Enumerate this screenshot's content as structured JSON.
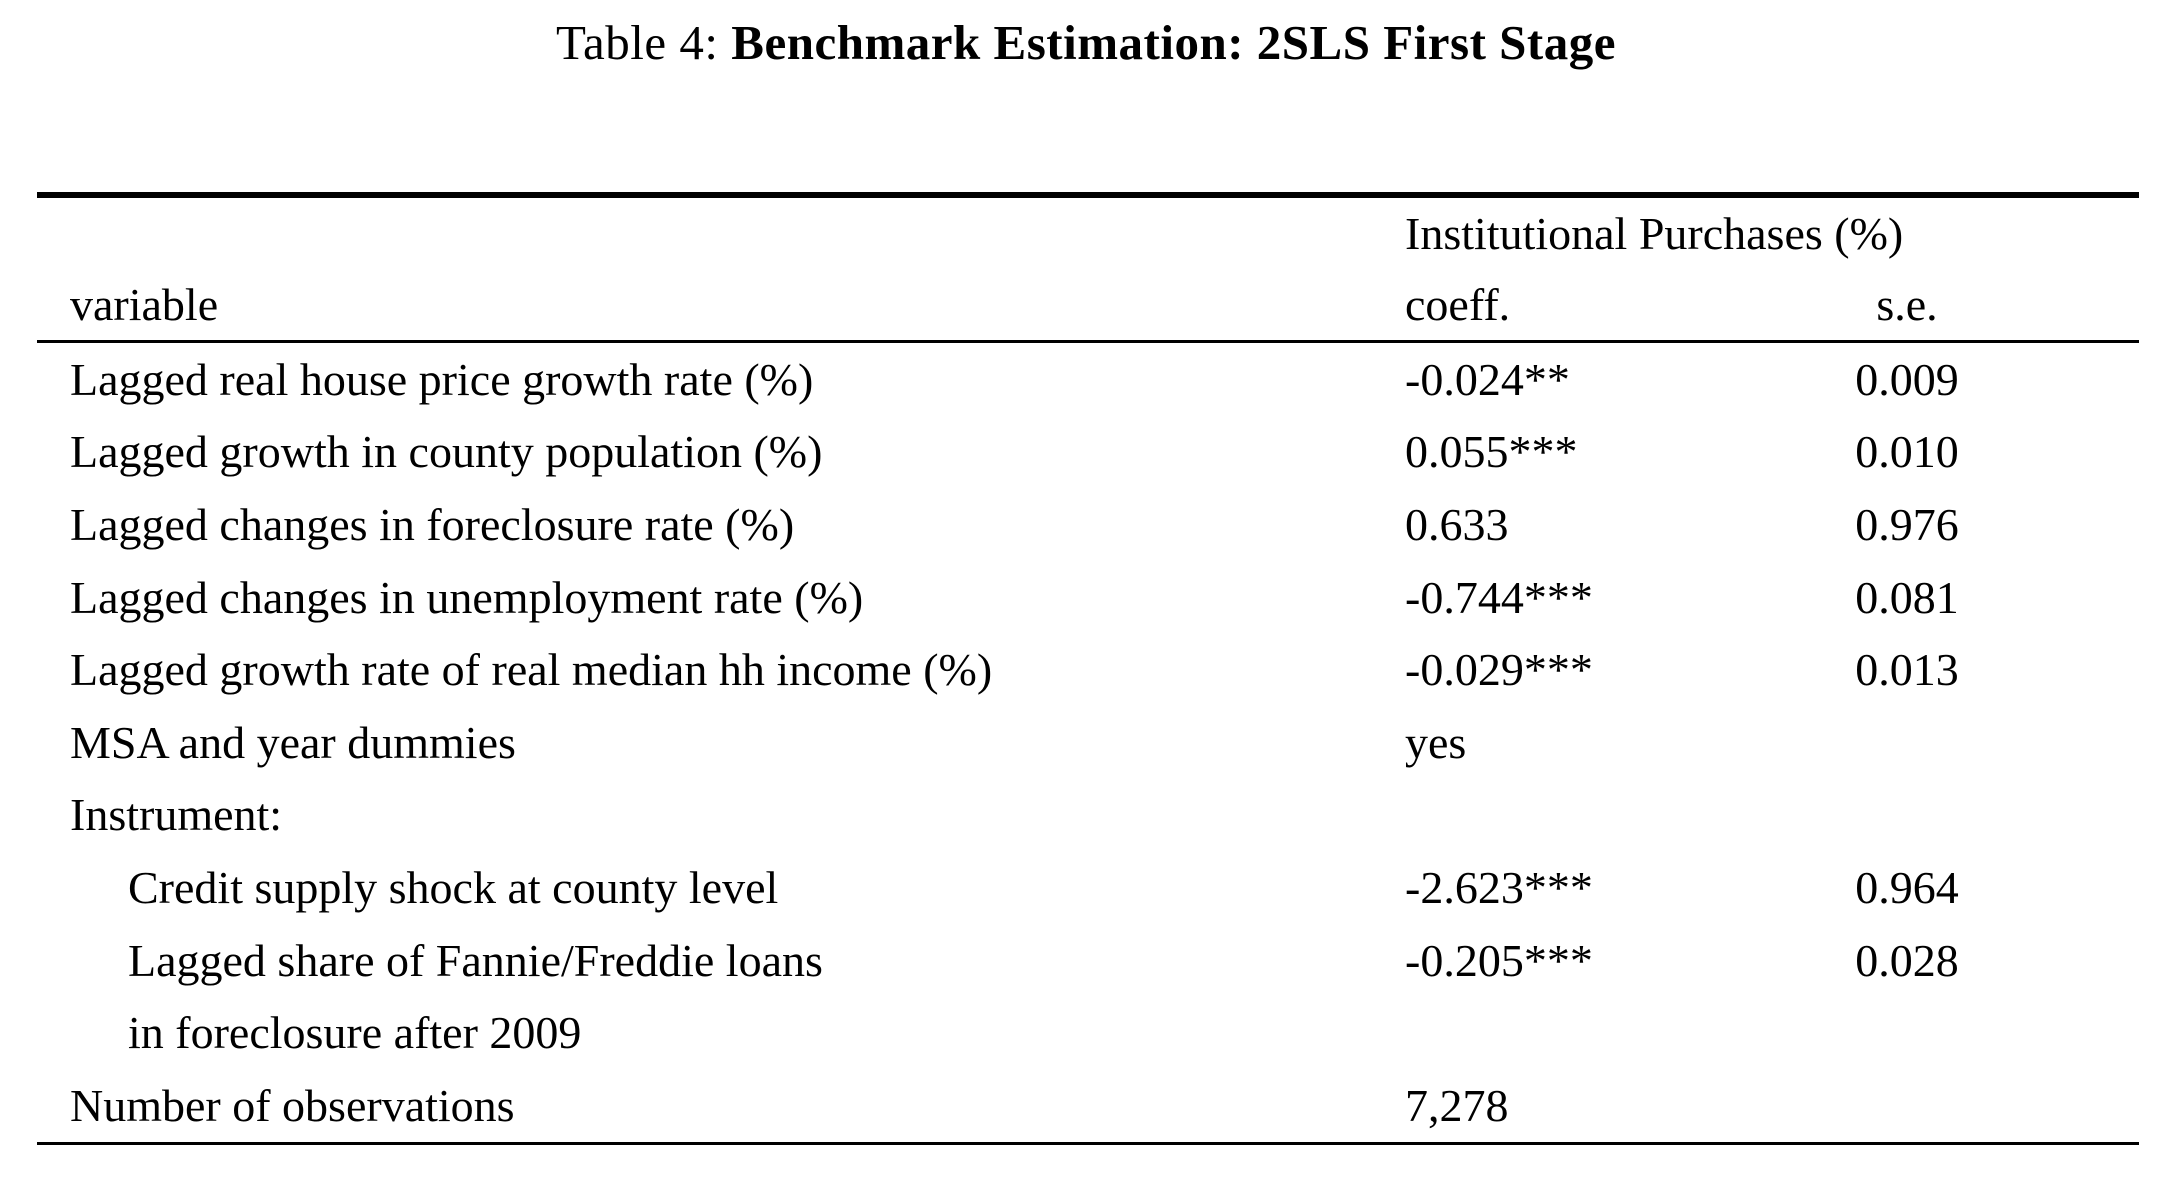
{
  "title": {
    "prefix": "Table 4: ",
    "bold": "Benchmark Estimation: 2SLS First Stage"
  },
  "table": {
    "col_group_header": "Institutional Purchases (%)",
    "columns": [
      "variable",
      "coeff.",
      "s.e."
    ],
    "rows": [
      {
        "label": "Lagged real house price growth rate (%)",
        "coeff": "-0.024**",
        "se": "0.009",
        "indent": false
      },
      {
        "label": "Lagged growth in county population (%)",
        "coeff": "0.055***",
        "se": "0.010",
        "indent": false
      },
      {
        "label": "Lagged changes in foreclosure rate (%)",
        "coeff": "0.633",
        "se": "0.976",
        "indent": false
      },
      {
        "label": "Lagged changes in unemployment rate (%)",
        "coeff": "-0.744***",
        "se": "0.081",
        "indent": false
      },
      {
        "label": "Lagged growth rate of real median hh income (%)",
        "coeff": "-0.029***",
        "se": "0.013",
        "indent": false
      },
      {
        "label": "MSA and year dummies",
        "coeff": "yes",
        "se": "",
        "indent": false
      },
      {
        "label": "Instrument:",
        "coeff": "",
        "se": "",
        "indent": false
      },
      {
        "label": "Credit supply shock at county level",
        "coeff": "-2.623***",
        "se": "0.964",
        "indent": true
      },
      {
        "label": "Lagged share of Fannie/Freddie loans",
        "coeff": "-0.205***",
        "se": "0.028",
        "indent": true
      },
      {
        "label": "in foreclosure after 2009",
        "coeff": "",
        "se": "",
        "indent": true
      },
      {
        "label": "Number of observations",
        "coeff": "7,278",
        "se": "",
        "indent": false
      }
    ]
  },
  "colors": {
    "background": "#ffffff",
    "text": "#000000",
    "rule": "#000000"
  }
}
